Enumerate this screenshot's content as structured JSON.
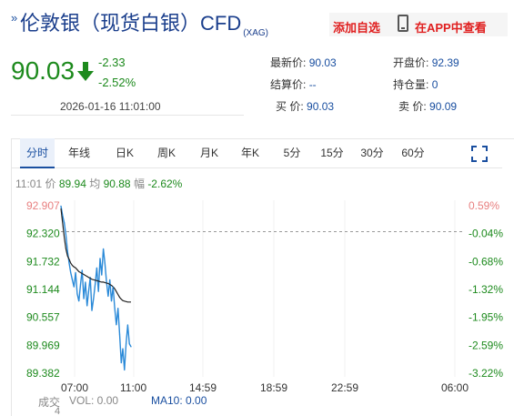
{
  "header": {
    "mark": "»",
    "title": "伦敦银（现货白银）CFD",
    "code": "(XAG)",
    "add_favorite": "添加自选",
    "app_view": "在APP中查看"
  },
  "quote": {
    "price": "90.03",
    "change": "-2.33",
    "change_pct": "-2.52%",
    "timestamp": "2026-01-16 11:01:00"
  },
  "stats": {
    "latest_label": "最新价:",
    "latest_value": "90.03",
    "open_label": "开盘价:",
    "open_value": "92.39",
    "settle_label": "结算价:",
    "settle_value": "--",
    "hold_label": "持仓量:",
    "hold_value": "0",
    "buy_label": "买  价:",
    "buy_value": "90.03",
    "sell_label": "卖  价:",
    "sell_value": "90.09"
  },
  "tabs": [
    "分时",
    "年线",
    "日K",
    "周K",
    "月K",
    "年K",
    "5分",
    "15分",
    "30分",
    "60分"
  ],
  "quote_line": {
    "time": "11:01",
    "price_label": "价",
    "price": "89.94",
    "avg_label": "均",
    "avg": "90.88",
    "amp_label": "幅",
    "amp": "-2.62%"
  },
  "colors": {
    "up": "#e88080",
    "down": "#1d8a1d",
    "price_line": "#2b8ad8",
    "avg_line": "#222222",
    "accent": "#1a4fa0"
  },
  "chart_data": {
    "type": "line",
    "y_ticks": [
      "92.907",
      "92.320",
      "91.732",
      "91.144",
      "90.557",
      "89.969",
      "89.382"
    ],
    "y_pct_ticks": [
      "0.59%",
      "-0.04%",
      "-0.68%",
      "-1.32%",
      "-1.95%",
      "-2.59%",
      "-3.22%"
    ],
    "x_ticks": [
      "07:00",
      "11:00",
      "14:59",
      "18:59",
      "22:59",
      "06:00"
    ],
    "ylim": [
      89.382,
      92.907
    ],
    "prev_close": 92.36,
    "price_series": [
      92.9,
      92.7,
      92.55,
      92.3,
      91.95,
      91.7,
      91.5,
      91.35,
      91.2,
      91.5,
      91.05,
      90.9,
      91.25,
      91.55,
      90.95,
      91.3,
      90.8,
      91.1,
      91.4,
      90.7,
      90.95,
      91.25,
      91.6,
      91.1,
      91.8,
      91.45,
      92.0,
      91.7,
      91.3,
      91.0,
      91.35,
      90.9,
      91.2,
      90.75,
      90.4,
      90.75,
      90.2,
      89.6,
      89.9,
      89.45,
      90.0,
      90.4,
      90.0,
      89.94
    ],
    "avg_series": [
      92.85,
      92.55,
      92.25,
      92.0,
      91.85,
      91.78,
      91.7,
      91.65,
      91.62,
      91.6,
      91.56,
      91.52,
      91.5,
      91.48,
      91.46,
      91.44,
      91.42,
      91.4,
      91.38,
      91.36,
      91.35,
      91.34,
      91.33,
      91.32,
      91.31,
      91.3,
      91.3,
      91.29,
      91.28,
      91.27,
      91.25,
      91.23,
      91.2,
      91.16,
      91.1,
      91.04,
      90.98,
      90.94,
      90.91,
      90.9,
      90.89,
      90.88,
      90.88,
      90.88
    ],
    "volume": {
      "label": "成交",
      "value_label": "VOL: 0.00",
      "ma_label": "MA10: 0.00",
      "subvalue": "4"
    }
  }
}
